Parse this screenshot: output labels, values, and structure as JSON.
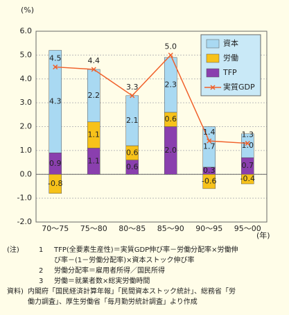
{
  "chart_data": {
    "type": "stacked-bar-line",
    "y_unit": "(%)",
    "x_unit": "(年)",
    "categories": [
      "70～75",
      "75～80",
      "80～85",
      "85～90",
      "90～95",
      "95～00"
    ],
    "series": [
      {
        "name": "資本",
        "type": "bar",
        "color": "#a9d9f2",
        "values": [
          4.3,
          2.2,
          2.1,
          2.3,
          1.7,
          1.0
        ],
        "value_labels": [
          "4.3",
          "2.2",
          "2.1",
          "2.3",
          "1.7",
          "1.0"
        ]
      },
      {
        "name": "労働",
        "type": "bar",
        "color": "#f7c21a",
        "values": [
          -0.8,
          1.1,
          0.6,
          0.6,
          -0.6,
          -0.4
        ],
        "value_labels": [
          "-0.8",
          "1.1",
          "0.6",
          "0.6",
          "-0.6",
          "-0.4"
        ]
      },
      {
        "name": "TFP",
        "type": "bar",
        "color": "#8a3fae",
        "values": [
          0.9,
          1.1,
          0.6,
          2.0,
          0.3,
          0.7
        ],
        "value_labels": [
          "0.9",
          "1.1",
          "0.6",
          "2.0",
          "0.3",
          "0.7"
        ]
      },
      {
        "name": "実質GDP",
        "type": "line",
        "color": "#f0602a",
        "values": [
          4.5,
          4.4,
          3.3,
          5.0,
          1.4,
          1.3
        ],
        "value_labels": [
          "4.5",
          "4.4",
          "3.3",
          "5.0",
          "1.4",
          "1.3"
        ]
      }
    ],
    "ylim": [
      -2,
      6
    ],
    "yticks": [
      {
        "value": -2,
        "label": "-2.0"
      },
      {
        "value": -1,
        "label": "-1.0"
      },
      {
        "value": 0,
        "label": "0.0"
      },
      {
        "value": 1,
        "label": "1.0"
      },
      {
        "value": 2,
        "label": "2.0"
      },
      {
        "value": 3,
        "label": "3.0"
      },
      {
        "value": 4,
        "label": "4.0"
      },
      {
        "value": 5,
        "label": "5.0"
      },
      {
        "value": 6,
        "label": "6.0"
      }
    ],
    "grid": true,
    "legend": "top-right"
  },
  "notes": {
    "label": "(注)",
    "items": [
      {
        "num": "1",
        "lines": [
          "TFP(全要素生産性)＝実質GDP伸び率－労働分配率×労働伸",
          "び率－(1－労働分配率)×資本ストック伸び率"
        ]
      },
      {
        "num": "2",
        "lines": [
          "労働分配率＝雇用者所得／国民所得"
        ]
      },
      {
        "num": "3",
        "lines": [
          "労働＝就業者数×総実労働時間"
        ]
      }
    ]
  },
  "source": {
    "label": "資料)",
    "lines": [
      "内閣府「国民経済計算年報」「民間資本ストック統計」、総務省「労",
      "働力調査」、厚生労働省「毎月勤労統計調査」より作成"
    ]
  }
}
